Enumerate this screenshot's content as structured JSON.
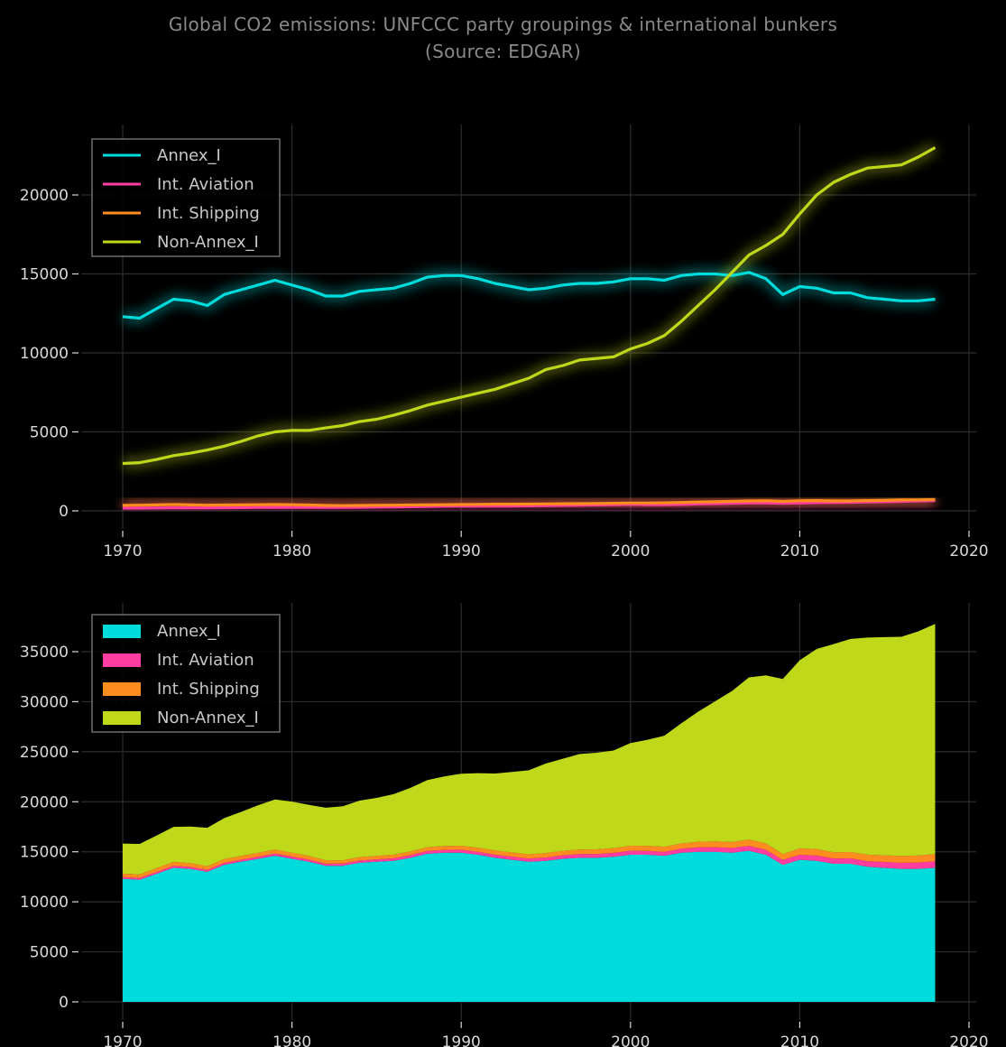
{
  "title": {
    "line1": "Global CO2 emissions: UNFCCC party groupings & international bunkers",
    "line2": "(Source: EDGAR)"
  },
  "chart_data": [
    {
      "type": "line",
      "x": [
        1970,
        1971,
        1972,
        1973,
        1974,
        1975,
        1976,
        1977,
        1978,
        1979,
        1980,
        1981,
        1982,
        1983,
        1984,
        1985,
        1986,
        1987,
        1988,
        1989,
        1990,
        1991,
        1992,
        1993,
        1994,
        1995,
        1996,
        1997,
        1998,
        1999,
        2000,
        2001,
        2002,
        2003,
        2004,
        2005,
        2006,
        2007,
        2008,
        2009,
        2010,
        2011,
        2012,
        2013,
        2014,
        2015,
        2016,
        2017,
        2018
      ],
      "series": [
        {
          "name": "Annex_I",
          "color": "#00dcdc",
          "values": [
            12300,
            12200,
            12800,
            13400,
            13300,
            13000,
            13700,
            14000,
            14300,
            14600,
            14300,
            14000,
            13600,
            13600,
            13900,
            14000,
            14100,
            14400,
            14800,
            14900,
            14900,
            14700,
            14400,
            14200,
            14000,
            14100,
            14300,
            14400,
            14400,
            14500,
            14700,
            14700,
            14600,
            14900,
            15000,
            15000,
            14900,
            15100,
            14700,
            13700,
            14200,
            14100,
            13800,
            13800,
            13500,
            13400,
            13300,
            13300,
            13400
          ]
        },
        {
          "name": "Int. Aviation",
          "color": "#ff3ca0",
          "values": [
            170,
            175,
            185,
            195,
            190,
            190,
            200,
            205,
            215,
            225,
            225,
            220,
            215,
            220,
            230,
            240,
            250,
            265,
            280,
            295,
            305,
            300,
            305,
            310,
            320,
            335,
            350,
            365,
            375,
            390,
            410,
            395,
            395,
            405,
            440,
            460,
            480,
            500,
            500,
            480,
            500,
            520,
            530,
            545,
            560,
            580,
            600,
            630,
            650
          ]
        },
        {
          "name": "Int. Shipping",
          "color": "#ff8c1e",
          "values": [
            350,
            360,
            380,
            400,
            380,
            360,
            370,
            380,
            390,
            400,
            390,
            370,
            340,
            330,
            340,
            350,
            360,
            370,
            380,
            390,
            400,
            410,
            420,
            420,
            430,
            440,
            450,
            460,
            470,
            480,
            500,
            500,
            510,
            530,
            560,
            580,
            600,
            630,
            640,
            600,
            640,
            650,
            630,
            630,
            650,
            670,
            690,
            700,
            720
          ]
        },
        {
          "name": "Non-Annex_I",
          "color": "#bfd819",
          "values": [
            3000,
            3050,
            3250,
            3500,
            3650,
            3850,
            4100,
            4400,
            4750,
            5000,
            5100,
            5100,
            5250,
            5400,
            5650,
            5800,
            6050,
            6350,
            6700,
            6950,
            7200,
            7450,
            7700,
            8050,
            8400,
            8950,
            9200,
            9550,
            9650,
            9750,
            10250,
            10600,
            11100,
            12000,
            13000,
            14000,
            15100,
            16200,
            16800,
            17500,
            18800,
            20000,
            20800,
            21300,
            21700,
            21800,
            21900,
            22400,
            23000
          ]
        }
      ],
      "xlim": [
        1970,
        2020
      ],
      "ylim": [
        0,
        20000
      ],
      "x_ticks": [
        1970,
        1980,
        1990,
        2000,
        2010,
        2020
      ],
      "y_ticks": [
        0,
        5000,
        10000,
        15000,
        20000
      ],
      "grid": true,
      "legend": "top-left"
    },
    {
      "type": "area",
      "stacked": true,
      "series_ref": "same as first chart",
      "xlim": [
        1970,
        2020
      ],
      "ylim": [
        0,
        35000
      ],
      "x_ticks": [
        1970,
        1980,
        1990,
        2000,
        2010,
        2020
      ],
      "y_ticks": [
        0,
        5000,
        10000,
        15000,
        20000,
        25000,
        30000,
        35000
      ],
      "grid": true,
      "legend": "top-left"
    }
  ]
}
